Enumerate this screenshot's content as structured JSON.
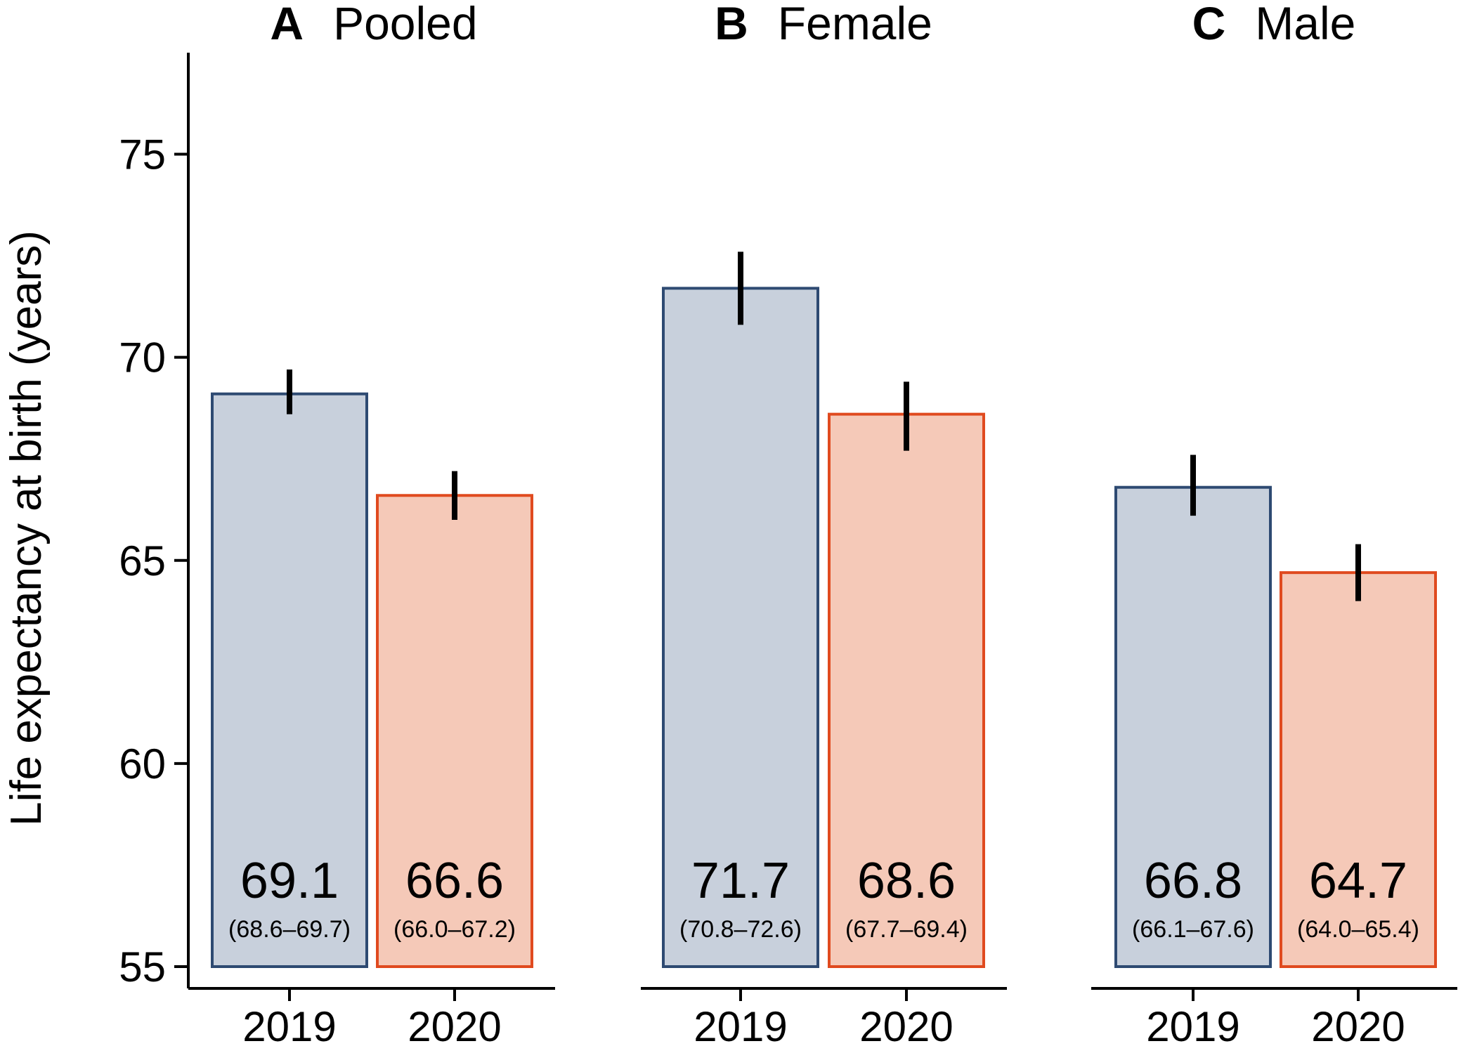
{
  "chart_data": {
    "type": "bar",
    "ylabel": "Life expectancy at birth (years)",
    "ylim": [
      55,
      77.5
    ],
    "yticks": [
      55,
      60,
      65,
      70,
      75
    ],
    "categories": [
      "2019",
      "2020"
    ],
    "colors": {
      "2019": {
        "fill": "#c8d0dc",
        "stroke": "#2e4a72"
      },
      "2020": {
        "fill": "#f5c9b8",
        "stroke": "#e04a1f"
      },
      "errorbar": "#000000"
    },
    "panels": [
      {
        "letter": "A",
        "title": "Pooled",
        "bars": [
          {
            "category": "2019",
            "value": 69.1,
            "lower": 68.6,
            "upper": 69.7,
            "label": "69.1",
            "ci_label": "(68.6–69.7)"
          },
          {
            "category": "2020",
            "value": 66.6,
            "lower": 66.0,
            "upper": 67.2,
            "label": "66.6",
            "ci_label": "(66.0–67.2)"
          }
        ]
      },
      {
        "letter": "B",
        "title": "Female",
        "bars": [
          {
            "category": "2019",
            "value": 71.7,
            "lower": 70.8,
            "upper": 72.6,
            "label": "71.7",
            "ci_label": "(70.8–72.6)"
          },
          {
            "category": "2020",
            "value": 68.6,
            "lower": 67.7,
            "upper": 69.4,
            "label": "68.6",
            "ci_label": "(67.7–69.4)"
          }
        ]
      },
      {
        "letter": "C",
        "title": "Male",
        "bars": [
          {
            "category": "2019",
            "value": 66.8,
            "lower": 66.1,
            "upper": 67.6,
            "label": "66.8",
            "ci_label": "(66.1–67.6)"
          },
          {
            "category": "2020",
            "value": 64.7,
            "lower": 64.0,
            "upper": 65.4,
            "label": "64.7",
            "ci_label": "(64.0–65.4)"
          }
        ]
      }
    ]
  }
}
